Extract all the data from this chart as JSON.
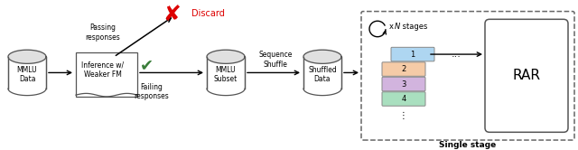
{
  "bg_color": "#ffffff",
  "discard_text": "Discard",
  "discard_color": "#ff0000",
  "passing_text": "Passing\nresponses",
  "failing_text": "Failing\nresponses",
  "sequence_shuffle_text": "Sequence\nShuffle",
  "single_stage_text": "Single stage",
  "xN_text": "x ",
  "xN_italic": "N",
  "xN_tail": " stages",
  "box1_text": "Inference w/\nWeaker FM",
  "box2_text": "RAR",
  "cylinder_labels": [
    "MMLU\nData",
    "MMLU\nSubset",
    "Shuffled\nData"
  ],
  "stack_labels": [
    "1",
    "2",
    "3",
    "4"
  ],
  "stack_colors": [
    "#aed6f1",
    "#f5cba7",
    "#d2b4de",
    "#a9dfbf"
  ],
  "dots_vertical": "⋮"
}
